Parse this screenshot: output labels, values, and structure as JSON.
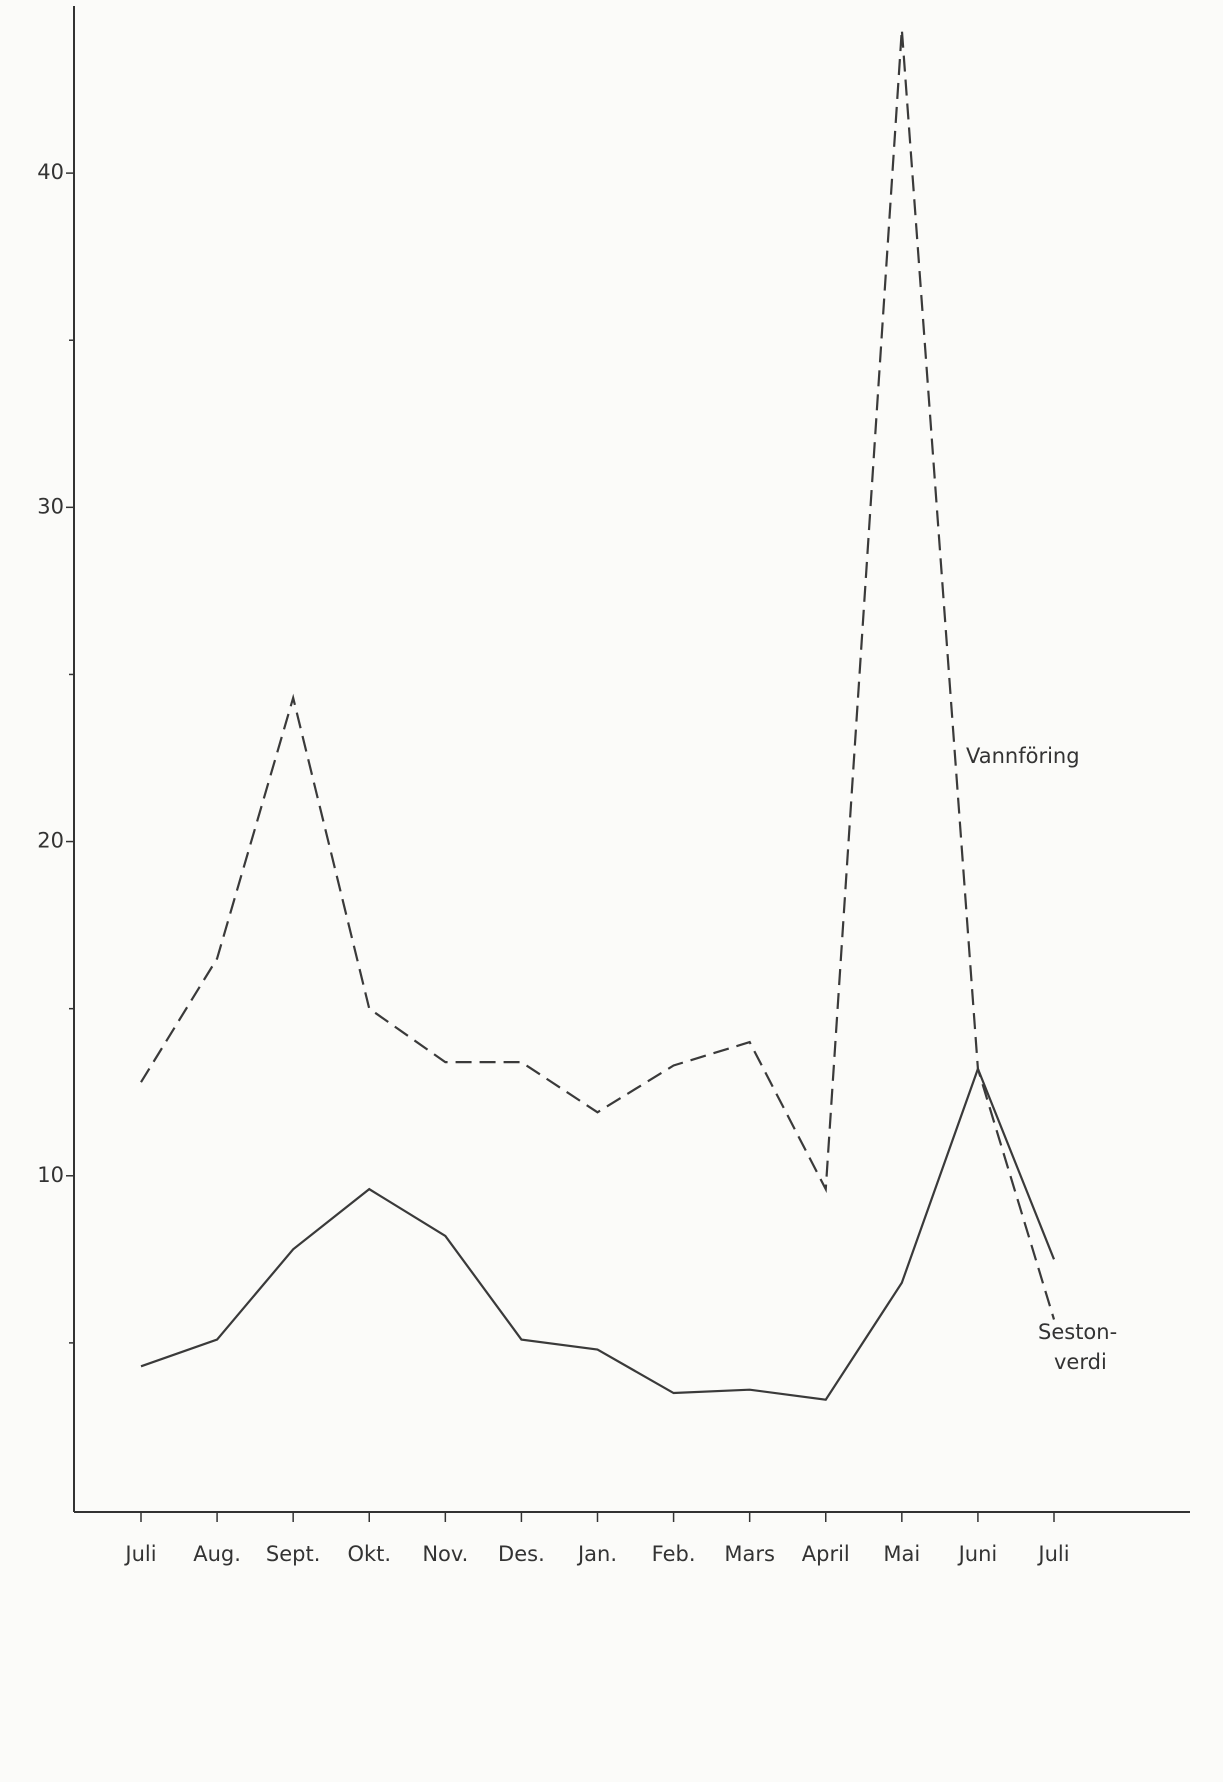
{
  "chart_data": {
    "type": "line",
    "categories": [
      "Juli",
      "Aug.",
      "Sept.",
      "Okt.",
      "Nov.",
      "Des.",
      "Jan.",
      "Feb.",
      "Mars",
      "April",
      "Mai",
      "Juni",
      "Juli"
    ],
    "series": [
      {
        "label_lines": [
          "Vannföring"
        ],
        "color": "#3a3a3a",
        "dashed": true,
        "values": [
          12.8,
          16.5,
          24.3,
          15.0,
          13.4,
          13.4,
          11.9,
          13.3,
          14.0,
          9.6,
          44.3,
          13.2,
          5.7
        ]
      },
      {
        "label_lines": [
          "Seston-",
          "verdi"
        ],
        "color": "#3a3a3a",
        "dashed": false,
        "values": [
          4.3,
          5.1,
          7.8,
          9.6,
          8.2,
          5.1,
          4.8,
          3.5,
          3.6,
          3.3,
          6.8,
          13.2,
          7.5
        ]
      }
    ],
    "ylim": [
      0,
      45
    ],
    "yticks": [
      10,
      20,
      30,
      40
    ],
    "yminor_ticks": [
      5,
      15,
      25,
      35
    ]
  }
}
